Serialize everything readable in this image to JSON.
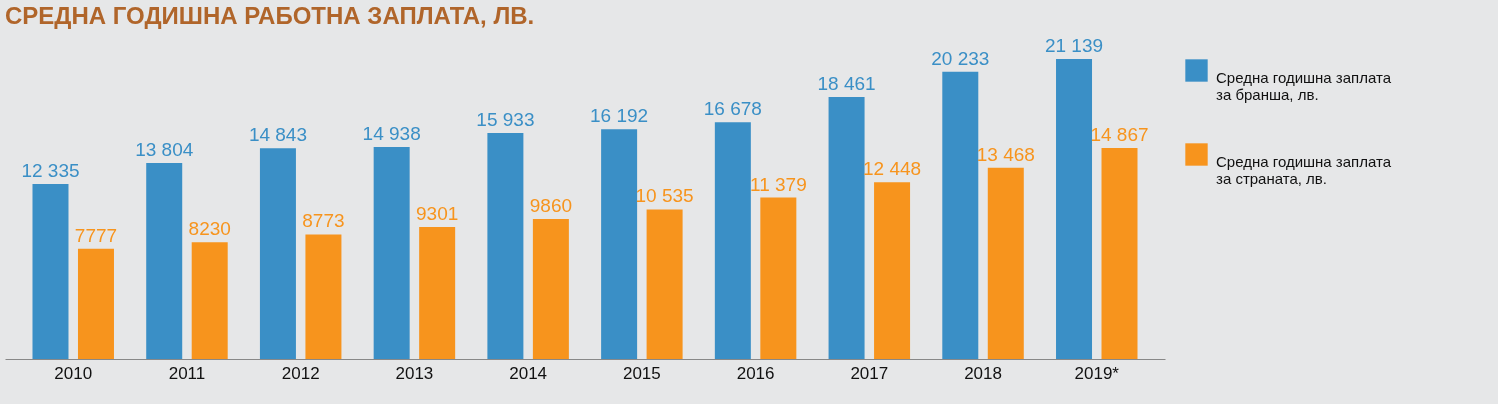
{
  "chart_data": {
    "type": "bar",
    "title": "СРЕДНА ГОДИШНА РАБОТНА ЗАПЛАТА, ЛВ.",
    "categories": [
      "2010",
      "2011",
      "2012",
      "2013",
      "2014",
      "2015",
      "2016",
      "2017",
      "2018",
      "2019*"
    ],
    "series": [
      {
        "name": "Средна годишна заплата за бранша, лв.",
        "color": "#3a8fc6",
        "values": [
          12335,
          13804,
          14843,
          14938,
          15933,
          16192,
          16678,
          18461,
          20233,
          21139
        ]
      },
      {
        "name": "Средна годишна заплата за страната, лв.",
        "color": "#f7941d",
        "values": [
          7777,
          8230,
          8773,
          9301,
          9860,
          10535,
          11379,
          12448,
          13468,
          14867
        ]
      }
    ],
    "data_labels": true,
    "legend": "right",
    "grid": false
  }
}
